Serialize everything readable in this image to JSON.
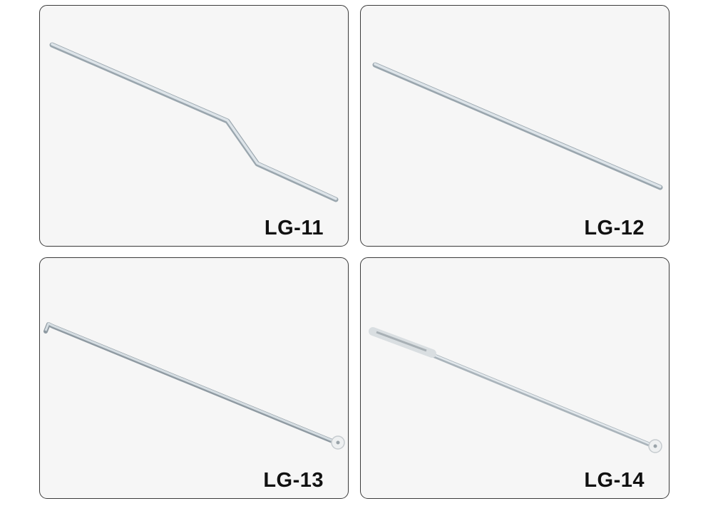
{
  "products": [
    {
      "label": "LG-11"
    },
    {
      "label": "LG-12"
    },
    {
      "label": "LG-13"
    },
    {
      "label": "LG-14"
    }
  ],
  "colors": {
    "card_background": "#f6f6f6",
    "card_border": "#3a3a3a",
    "rod": "#c9d3da",
    "label": "#111111"
  }
}
